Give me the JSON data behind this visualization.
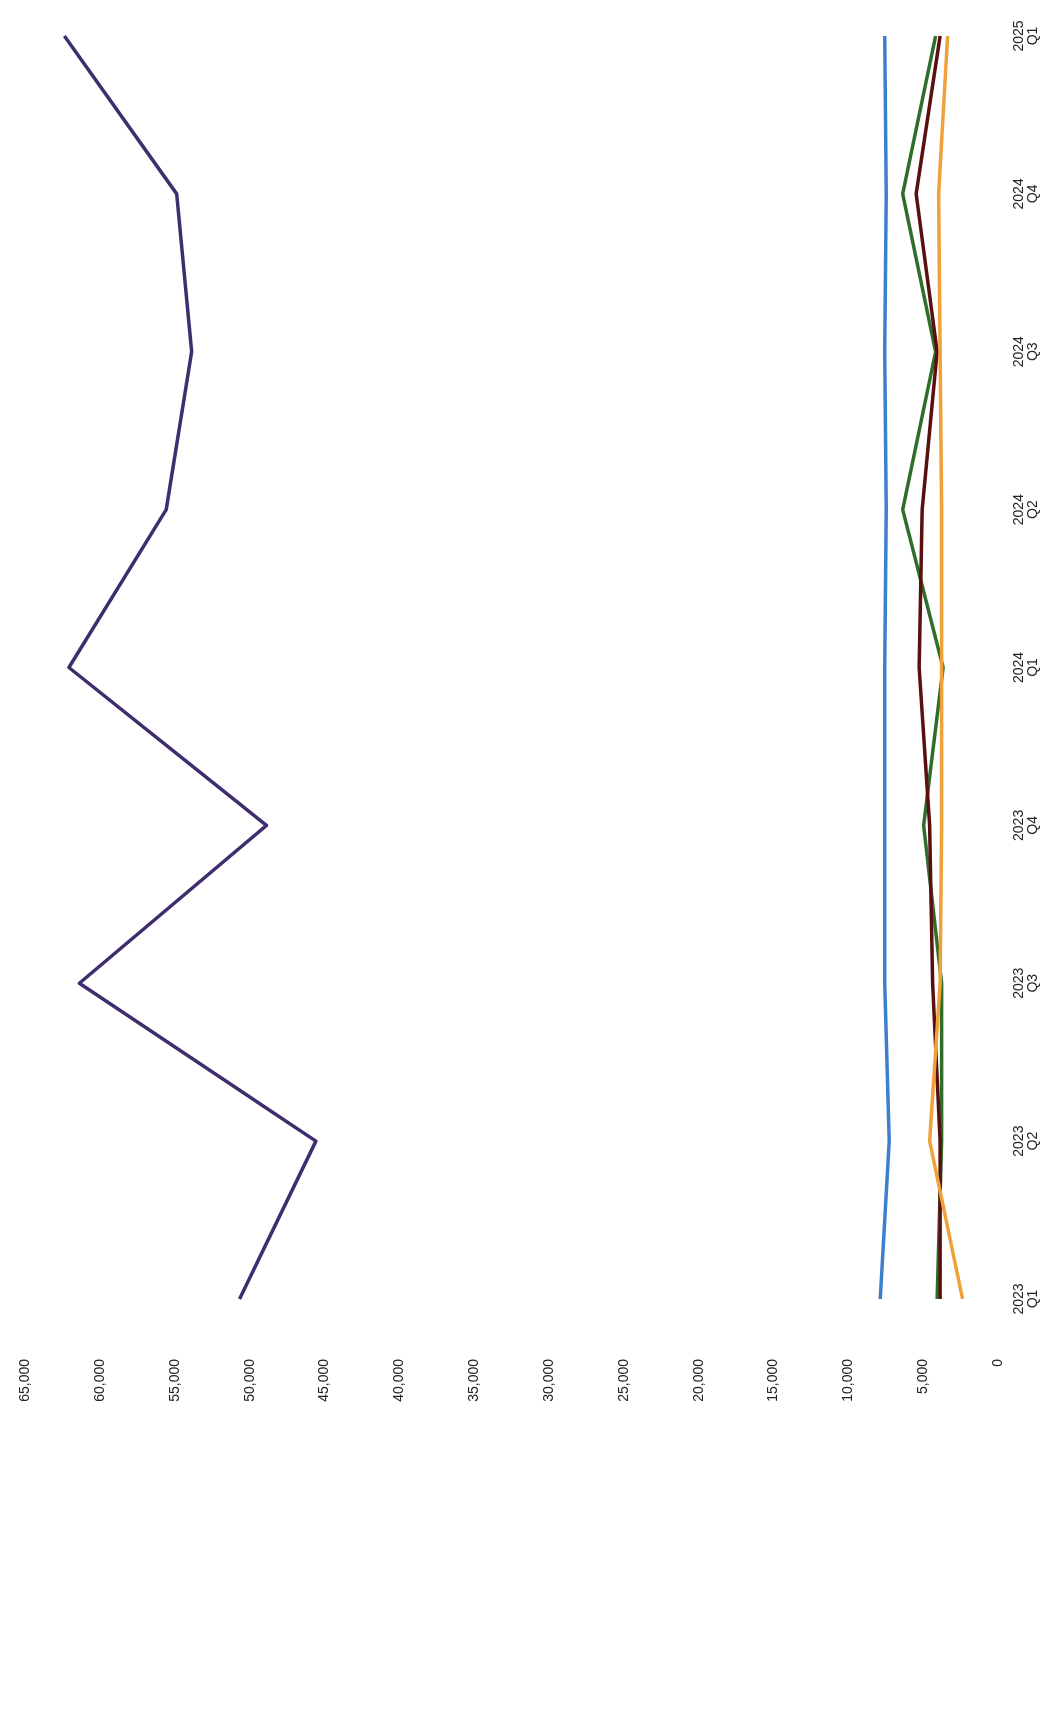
{
  "chart_data": {
    "type": "line",
    "orientation": "horizontal",
    "categories": [
      "2025\nQ1",
      "2024\nQ4",
      "2024\nQ3",
      "2024\nQ2",
      "2024\nQ1",
      "2023\nQ4",
      "2023\nQ3",
      "2023\nQ2",
      "2023\nQ1"
    ],
    "series": [
      {
        "color": "#3f2d6e",
        "values": [
          62300,
          54800,
          53800,
          55500,
          62000,
          48800,
          61300,
          45500,
          50600
        ]
      },
      {
        "color": "#3d7fcf",
        "values": [
          7500,
          7400,
          7500,
          7400,
          7500,
          7500,
          7500,
          7200,
          7800
        ]
      },
      {
        "color": "#2f6e2a",
        "values": [
          4100,
          6300,
          4100,
          6300,
          3600,
          4900,
          3700,
          3700,
          4000
        ]
      },
      {
        "color": "#5a0f10",
        "values": [
          3800,
          5400,
          4000,
          5000,
          5200,
          4500,
          4300,
          3800,
          3800
        ]
      },
      {
        "color": "#f0a23a",
        "values": [
          3300,
          3900,
          3800,
          3700,
          3700,
          3700,
          3800,
          4500,
          2300
        ]
      }
    ],
    "xlim": [
      65000,
      0
    ],
    "xticks": [
      0,
      {
        "value": 5000,
        "label": "5,000"
      },
      {
        "value": 10000,
        "label": "10,000"
      },
      {
        "value": 15000,
        "label": "15,000"
      },
      {
        "value": 20000,
        "label": "20,000"
      },
      {
        "value": 25000,
        "label": "25,000"
      },
      {
        "value": 30000,
        "label": "30,000"
      },
      {
        "value": 35000,
        "label": "35,000"
      },
      {
        "value": 40000,
        "label": "40,000"
      },
      {
        "value": 45000,
        "label": "45,000"
      },
      {
        "value": 50000,
        "label": "50,000"
      },
      {
        "value": 55000,
        "label": "55,000"
      },
      {
        "value": 60000,
        "label": "60,000"
      },
      {
        "value": 65000,
        "label": "65,000"
      }
    ],
    "grid": false,
    "marker": "none",
    "line_style": "solid"
  }
}
